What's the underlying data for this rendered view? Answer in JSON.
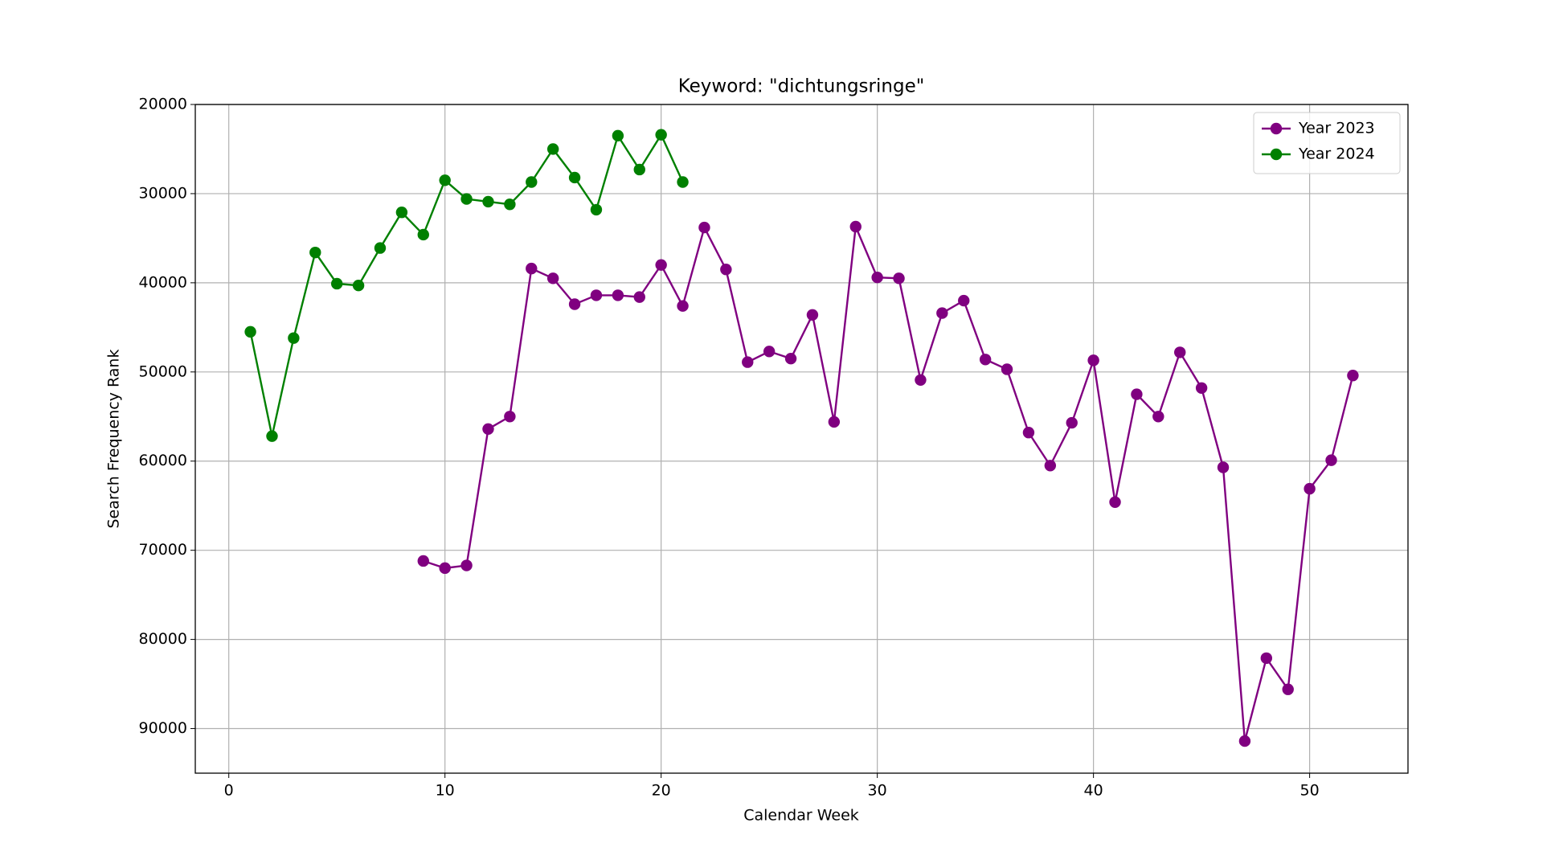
{
  "chart_data": {
    "type": "line",
    "title": "Keyword: \"dichtungsringe\"",
    "xlabel": "Calendar Week",
    "ylabel": "Search Frequency Rank",
    "x": [
      1,
      2,
      3,
      4,
      5,
      6,
      7,
      8,
      9,
      10,
      11,
      12,
      13,
      14,
      15,
      16,
      17,
      18,
      19,
      20,
      21,
      22,
      23,
      24,
      25,
      26,
      27,
      28,
      29,
      30,
      31,
      32,
      33,
      34,
      35,
      36,
      37,
      38,
      39,
      40,
      41,
      42,
      43,
      44,
      45,
      46,
      47,
      48,
      49,
      50,
      51,
      52
    ],
    "series": [
      {
        "name": "Year 2023",
        "color": "#800080",
        "values": [
          null,
          null,
          null,
          null,
          null,
          null,
          null,
          null,
          71200,
          72000,
          71700,
          56400,
          55000,
          38400,
          39500,
          42400,
          41400,
          41400,
          41600,
          38000,
          42600,
          33800,
          38500,
          48900,
          47700,
          48500,
          43600,
          55600,
          33700,
          39400,
          39500,
          50900,
          43400,
          42000,
          48600,
          49700,
          56800,
          60500,
          55700,
          48700,
          64600,
          52500,
          55000,
          47800,
          51800,
          60700,
          91400,
          82100,
          85600,
          63100,
          59900,
          50400
        ]
      },
      {
        "name": "Year 2024",
        "color": "#008000",
        "values": [
          45500,
          57200,
          46200,
          36600,
          40100,
          40300,
          36100,
          32100,
          34600,
          28500,
          30600,
          30900,
          31200,
          28700,
          25000,
          28200,
          31800,
          23500,
          27300,
          23400,
          28700,
          null,
          null,
          null,
          null,
          null,
          null,
          null,
          null,
          null,
          null,
          null,
          null,
          null,
          null,
          null,
          null,
          null,
          null,
          null,
          null,
          null,
          null,
          null,
          null,
          null,
          null,
          null,
          null,
          null,
          null,
          null
        ]
      }
    ],
    "xlim": [
      -1.55,
      54.55
    ],
    "xticks": [
      0,
      10,
      20,
      30,
      40,
      50
    ],
    "ylim": [
      95000,
      20000
    ],
    "yticks": [
      20000,
      30000,
      40000,
      50000,
      60000,
      70000,
      80000,
      90000
    ],
    "grid": true,
    "legend": "upper right"
  }
}
